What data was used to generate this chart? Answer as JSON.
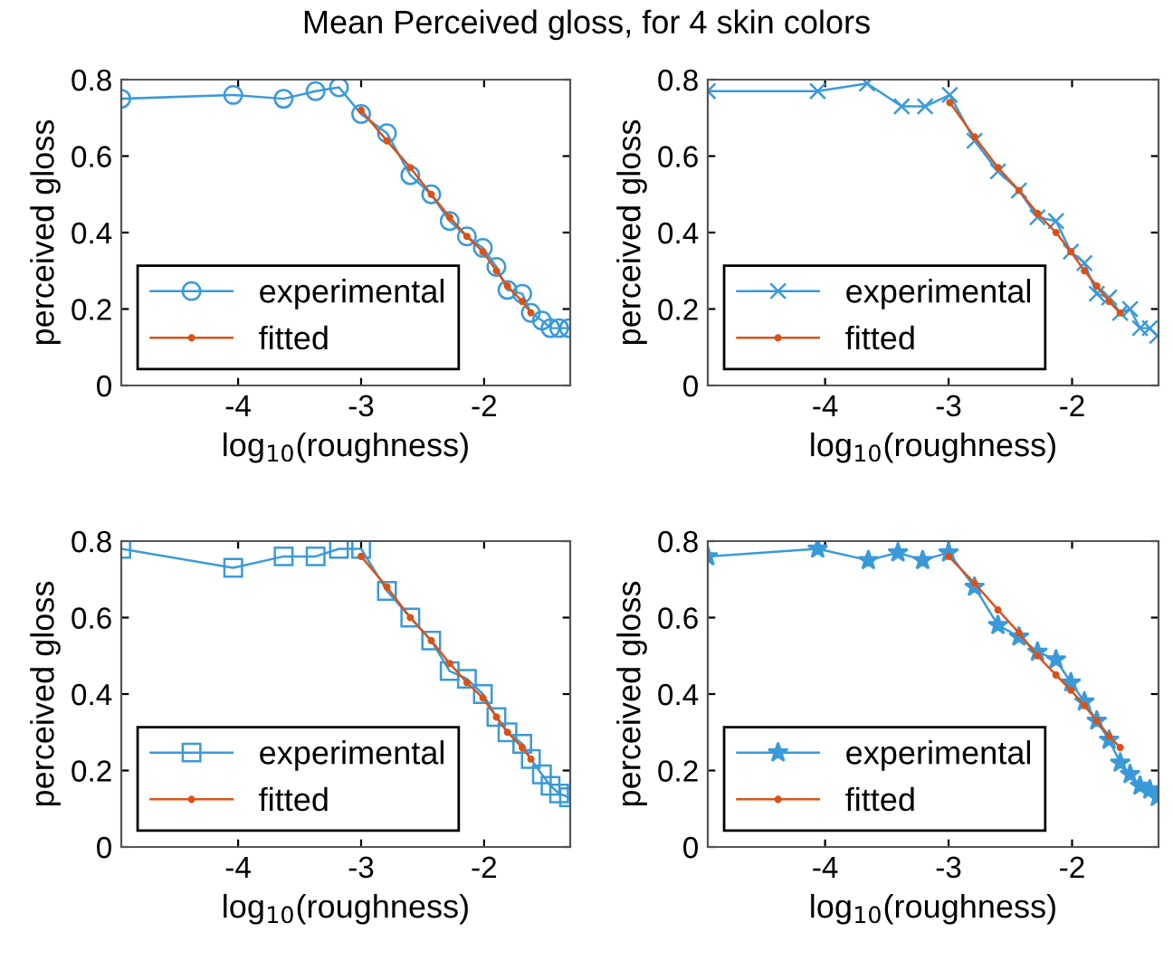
{
  "chart_data": [
    {
      "type": "line",
      "title": "Mean Perceived gloss, for 4 skin colors",
      "xlabel": "log$_{10}$(roughness)",
      "ylabel": "perceived gloss",
      "xlim": [
        -4.95,
        -1.3
      ],
      "ylim": [
        0,
        0.8
      ],
      "xticks": [
        -4,
        -3,
        -2
      ],
      "yticks": [
        0,
        0.2,
        0.4,
        0.6,
        0.8
      ],
      "grid": false,
      "legend": "bottom left",
      "series": [
        {
          "name": "experimental",
          "color": "#3a9ad9",
          "marker": "circle",
          "x": [
            -4.95,
            -4.04,
            -3.63,
            -3.37,
            -3.18,
            -3.0,
            -2.79,
            -2.6,
            -2.43,
            -2.28,
            -2.14,
            -2.01,
            -1.9,
            -1.81,
            -1.69,
            -1.62,
            -1.53,
            -1.46,
            -1.39,
            -1.31
          ],
          "values": [
            0.75,
            0.76,
            0.75,
            0.77,
            0.78,
            0.71,
            0.66,
            0.55,
            0.5,
            0.43,
            0.39,
            0.36,
            0.31,
            0.25,
            0.24,
            0.19,
            0.17,
            0.15,
            0.15,
            0.15
          ]
        },
        {
          "name": "fitted",
          "color": "#d95319",
          "marker": "dot",
          "x": [
            -3.0,
            -2.79,
            -2.6,
            -2.43,
            -2.28,
            -2.14,
            -2.01,
            -1.9,
            -1.81,
            -1.69,
            -1.62
          ],
          "values": [
            0.72,
            0.64,
            0.57,
            0.5,
            0.44,
            0.39,
            0.35,
            0.3,
            0.26,
            0.22,
            0.19
          ]
        }
      ]
    },
    {
      "type": "line",
      "xlabel": "log$_{10}$(roughness)",
      "ylabel": "perceived gloss",
      "xlim": [
        -4.95,
        -1.3
      ],
      "ylim": [
        0,
        0.8
      ],
      "xticks": [
        -4,
        -3,
        -2
      ],
      "yticks": [
        0,
        0.2,
        0.4,
        0.6,
        0.8
      ],
      "grid": false,
      "legend": "bottom left",
      "series": [
        {
          "name": "experimental",
          "color": "#3a9ad9",
          "marker": "cross",
          "x": [
            -4.95,
            -4.06,
            -3.66,
            -3.38,
            -3.19,
            -2.99,
            -2.79,
            -2.6,
            -2.43,
            -2.28,
            -2.13,
            -2.01,
            -1.9,
            -1.8,
            -1.7,
            -1.61,
            -1.53,
            -1.45,
            -1.37,
            -1.31
          ],
          "values": [
            0.77,
            0.77,
            0.79,
            0.73,
            0.73,
            0.76,
            0.64,
            0.56,
            0.51,
            0.44,
            0.43,
            0.35,
            0.32,
            0.24,
            0.23,
            0.19,
            0.2,
            0.15,
            0.15,
            0.13
          ]
        },
        {
          "name": "fitted",
          "color": "#d95319",
          "marker": "dot",
          "x": [
            -2.99,
            -2.79,
            -2.6,
            -2.43,
            -2.28,
            -2.13,
            -2.01,
            -1.9,
            -1.8,
            -1.7,
            -1.61
          ],
          "values": [
            0.74,
            0.65,
            0.57,
            0.51,
            0.45,
            0.4,
            0.35,
            0.3,
            0.26,
            0.22,
            0.19
          ]
        }
      ]
    },
    {
      "type": "line",
      "xlabel": "log$_{10}$(roughness)",
      "ylabel": "perceived gloss",
      "xlim": [
        -4.95,
        -1.3
      ],
      "ylim": [
        0,
        0.8
      ],
      "xticks": [
        -4,
        -3,
        -2
      ],
      "yticks": [
        0,
        0.2,
        0.4,
        0.6,
        0.8
      ],
      "grid": false,
      "legend": "bottom left",
      "series": [
        {
          "name": "experimental",
          "color": "#3a9ad9",
          "marker": "square",
          "x": [
            -4.95,
            -4.04,
            -3.63,
            -3.37,
            -3.18,
            -3.0,
            -2.79,
            -2.6,
            -2.43,
            -2.28,
            -2.14,
            -2.01,
            -1.9,
            -1.81,
            -1.69,
            -1.62,
            -1.53,
            -1.46,
            -1.39,
            -1.31
          ],
          "values": [
            0.78,
            0.73,
            0.76,
            0.76,
            0.78,
            0.78,
            0.67,
            0.6,
            0.54,
            0.46,
            0.44,
            0.4,
            0.34,
            0.3,
            0.27,
            0.23,
            0.19,
            0.16,
            0.14,
            0.13
          ]
        },
        {
          "name": "fitted",
          "color": "#d95319",
          "marker": "dot",
          "x": [
            -3.0,
            -2.79,
            -2.6,
            -2.43,
            -2.28,
            -2.14,
            -2.01,
            -1.9,
            -1.81,
            -1.69,
            -1.62
          ],
          "values": [
            0.76,
            0.68,
            0.6,
            0.54,
            0.48,
            0.43,
            0.39,
            0.34,
            0.3,
            0.26,
            0.23
          ]
        }
      ]
    },
    {
      "type": "line",
      "xlabel": "log$_{10}$(roughness)",
      "ylabel": "perceived gloss",
      "xlim": [
        -4.95,
        -1.3
      ],
      "ylim": [
        0,
        0.8
      ],
      "xticks": [
        -4,
        -3,
        -2
      ],
      "yticks": [
        0,
        0.2,
        0.4,
        0.6,
        0.8
      ],
      "grid": false,
      "legend": "bottom left",
      "series": [
        {
          "name": "experimental",
          "color": "#3a9ad9",
          "marker": "star",
          "x": [
            -4.95,
            -4.06,
            -3.65,
            -3.41,
            -3.21,
            -3.0,
            -2.79,
            -2.6,
            -2.43,
            -2.28,
            -2.13,
            -2.01,
            -1.9,
            -1.8,
            -1.7,
            -1.61,
            -1.53,
            -1.45,
            -1.37,
            -1.31
          ],
          "values": [
            0.76,
            0.78,
            0.75,
            0.77,
            0.75,
            0.77,
            0.68,
            0.58,
            0.55,
            0.51,
            0.49,
            0.43,
            0.38,
            0.33,
            0.28,
            0.22,
            0.19,
            0.16,
            0.15,
            0.13
          ]
        },
        {
          "name": "fitted",
          "color": "#d95319",
          "marker": "dot",
          "x": [
            -3.0,
            -2.79,
            -2.6,
            -2.43,
            -2.28,
            -2.13,
            -2.01,
            -1.9,
            -1.8,
            -1.7,
            -1.61
          ],
          "values": [
            0.76,
            0.69,
            0.62,
            0.56,
            0.5,
            0.45,
            0.41,
            0.37,
            0.33,
            0.29,
            0.26
          ]
        }
      ]
    }
  ]
}
